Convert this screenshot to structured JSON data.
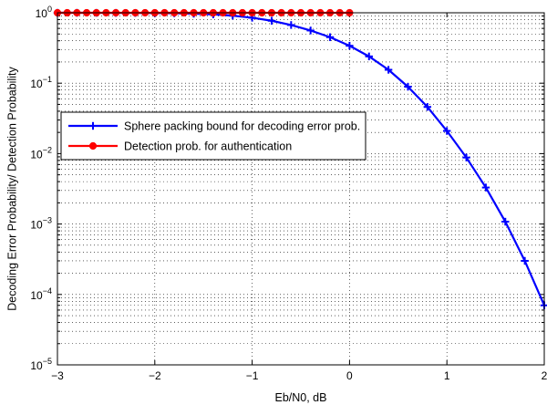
{
  "chart_data": {
    "type": "line",
    "title": "",
    "xlabel": "Eb/N0, dB",
    "ylabel": "Decoding Error Probability/ Detection Probability",
    "xlim": [
      -3,
      2
    ],
    "ylim": [
      1e-05,
      1
    ],
    "yscale": "log",
    "grid": true,
    "legend_position": "center-left",
    "xticks": [
      {
        "value": -3,
        "label": "−3"
      },
      {
        "value": -2,
        "label": "−2"
      },
      {
        "value": -1,
        "label": "−1"
      },
      {
        "value": 0,
        "label": "0"
      },
      {
        "value": 1,
        "label": "1"
      },
      {
        "value": 2,
        "label": "2"
      }
    ],
    "yticks": [
      {
        "value": 1,
        "base": "10",
        "exp": "0"
      },
      {
        "value": 0.1,
        "base": "10",
        "exp": "−1"
      },
      {
        "value": 0.01,
        "base": "10",
        "exp": "−2"
      },
      {
        "value": 0.001,
        "base": "10",
        "exp": "−3"
      },
      {
        "value": 0.0001,
        "base": "10",
        "exp": "−4"
      },
      {
        "value": 1e-05,
        "base": "10",
        "exp": "−5"
      }
    ],
    "series": [
      {
        "name": "Sphere packing bound for decoding error prob.",
        "color": "#0000ff",
        "marker": "plus",
        "x": [
          -3.0,
          -2.8,
          -2.6,
          -2.4,
          -2.2,
          -2.0,
          -1.8,
          -1.6,
          -1.4,
          -1.2,
          -1.0,
          -0.8,
          -0.6,
          -0.4,
          -0.2,
          0.0,
          0.2,
          0.4,
          0.6,
          0.8,
          1.0,
          1.2,
          1.4,
          1.6,
          1.8,
          2.0
        ],
        "y": [
          0.999,
          0.999,
          0.998,
          0.997,
          0.995,
          0.99,
          0.985,
          0.97,
          0.95,
          0.91,
          0.85,
          0.77,
          0.67,
          0.56,
          0.45,
          0.34,
          0.24,
          0.155,
          0.089,
          0.046,
          0.021,
          0.0088,
          0.0033,
          0.00108,
          0.0003,
          7e-05
        ]
      },
      {
        "name": "Detection prob. for authentication",
        "color": "#ff0000",
        "marker": "circle",
        "x": [
          -3.0,
          -2.9,
          -2.8,
          -2.7,
          -2.6,
          -2.5,
          -2.4,
          -2.3,
          -2.2,
          -2.1,
          -2.0,
          -1.9,
          -1.8,
          -1.7,
          -1.6,
          -1.5,
          -1.4,
          -1.3,
          -1.2,
          -1.1,
          -1.0,
          -0.9,
          -0.8,
          -0.7,
          -0.6,
          -0.5,
          -0.4,
          -0.3,
          -0.2,
          -0.1,
          0.0
        ],
        "y": [
          1,
          1,
          1,
          1,
          1,
          1,
          1,
          1,
          1,
          1,
          1,
          1,
          1,
          1,
          1,
          1,
          1,
          1,
          1,
          1,
          1,
          1,
          1,
          1,
          1,
          1,
          1,
          1,
          1,
          1,
          1
        ]
      }
    ]
  }
}
